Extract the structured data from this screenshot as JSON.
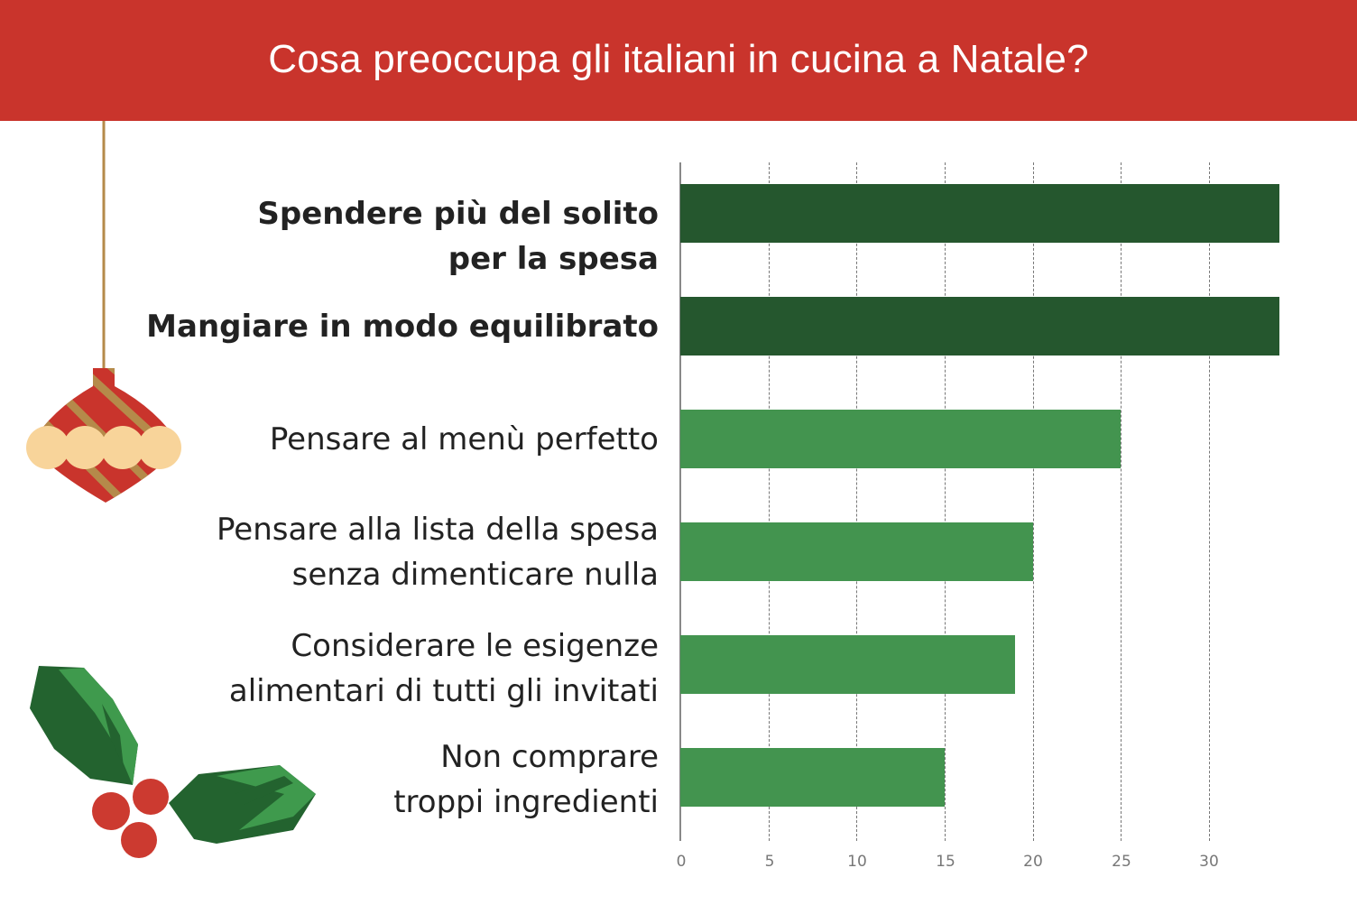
{
  "header": {
    "title": "Cosa preoccupa gli italiani in cucina a Natale?"
  },
  "colors": {
    "header_bg": "#c9342c",
    "bar_dark": "#25572e",
    "bar_light": "#43944f",
    "text": "#222222",
    "tick_text": "#777777",
    "ornament_red": "#c9342c",
    "ornament_gold": "#b58a4a",
    "ornament_cream": "#f8d49a",
    "holly_dark": "#23632f",
    "holly_light": "#3f9a4d",
    "berry": "#cc3a30"
  },
  "labels": [
    {
      "lines": [
        "Spendere più del solito",
        "per la spesa"
      ],
      "bold": true
    },
    {
      "lines": [
        "Mangiare in modo equilibrato"
      ],
      "bold": true
    },
    {
      "lines": [
        "Pensare al menù perfetto"
      ],
      "bold": false
    },
    {
      "lines": [
        "Pensare alla lista della spesa",
        "senza dimenticare nulla"
      ],
      "bold": false
    },
    {
      "lines": [
        "Considerare le esigenze",
        "alimentari di tutti gli invitati"
      ],
      "bold": false
    },
    {
      "lines": [
        "Non comprare",
        "troppi ingredienti"
      ],
      "bold": false
    }
  ],
  "ticks": [
    "0",
    "5",
    "10",
    "15",
    "20",
    "25",
    "30"
  ],
  "decorations": [
    "ornament-icon",
    "holly-icon"
  ],
  "chart_data": {
    "type": "bar",
    "orientation": "horizontal",
    "title": "Cosa preoccupa gli italiani in cucina a Natale?",
    "categories": [
      "Spendere più del solito per la spesa",
      "Mangiare in modo equilibrato",
      "Pensare al menù perfetto",
      "Pensare alla lista della spesa senza dimenticare nulla",
      "Considerare le esigenze alimentari di tutti gli invitati",
      "Non comprare troppi ingredienti"
    ],
    "values": [
      34,
      34,
      25,
      20,
      19,
      15
    ],
    "highlighted": [
      true,
      true,
      false,
      false,
      false,
      false
    ],
    "xlabel": "",
    "ylabel": "",
    "xlim": [
      0,
      35
    ],
    "xticks": [
      0,
      5,
      10,
      15,
      20,
      25,
      30
    ],
    "grid": "vertical dashed",
    "legend": "none"
  }
}
